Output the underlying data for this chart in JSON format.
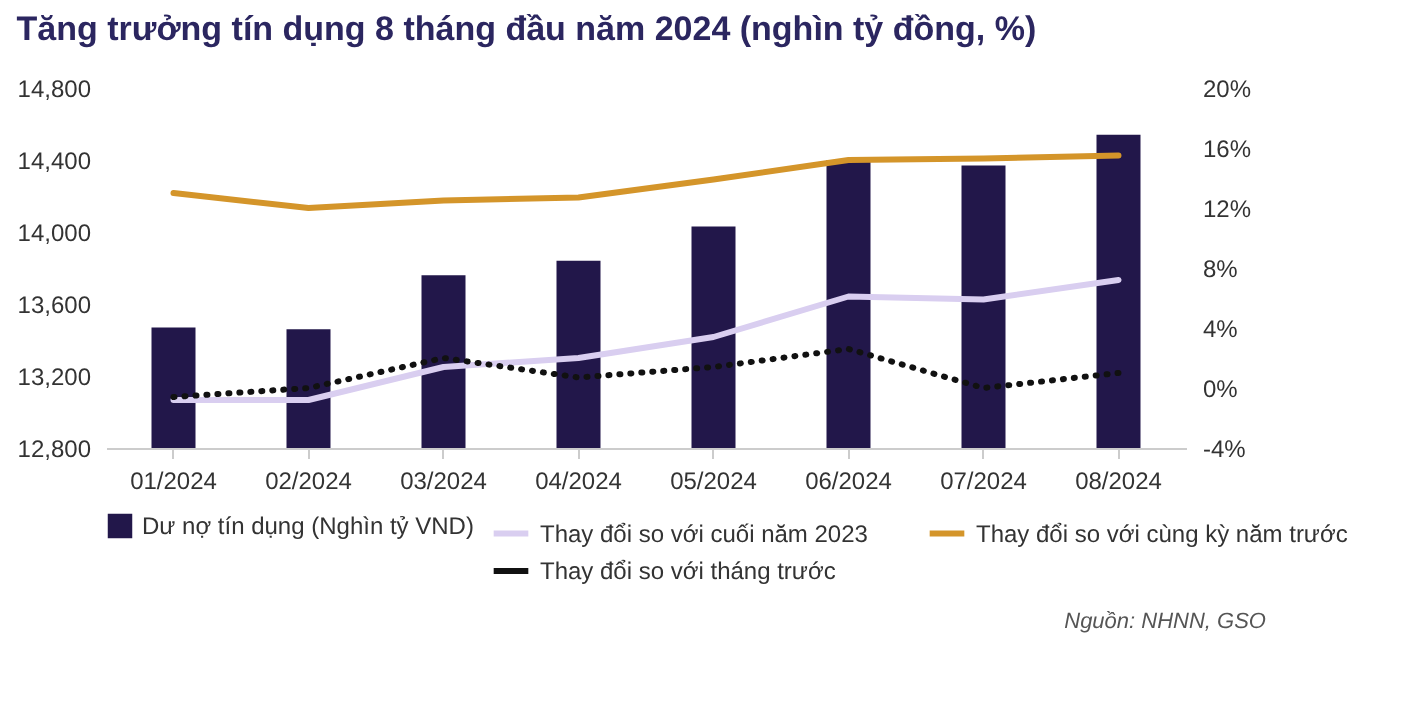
{
  "chart_data": {
    "type": "bar",
    "title": "Tăng trưởng tín dụng 8 tháng đầu năm 2024 (nghìn tỷ đồng, %)",
    "categories": [
      "01/2024",
      "02/2024",
      "03/2024",
      "04/2024",
      "05/2024",
      "06/2024",
      "07/2024",
      "08/2024"
    ],
    "series": [
      {
        "name": "Dư nợ tín dụng (Nghìn tỷ VND)",
        "color": "#22174a",
        "values": [
          13470,
          13460,
          13760,
          13840,
          14030,
          14400,
          14370,
          14540
        ]
      },
      {
        "name": "Thay đổi so với cuối năm 2023",
        "type": "line",
        "axis": "y2",
        "color": "#d9cef0",
        "line_style": "solid",
        "values": [
          -0.8,
          -0.8,
          1.4,
          2.0,
          3.4,
          6.1,
          5.9,
          7.2
        ]
      },
      {
        "name": "Thay đổi so với cùng kỳ năm trước",
        "type": "line",
        "axis": "y2",
        "color": "#d4952a",
        "line_style": "solid",
        "values": [
          13.0,
          12.0,
          12.5,
          12.7,
          13.9,
          15.2,
          15.3,
          15.5
        ]
      },
      {
        "name": "Thay đổi so với tháng trước",
        "type": "line",
        "axis": "y2",
        "color": "#111111",
        "line_style": "dotted",
        "values": [
          -0.6,
          0.0,
          2.0,
          0.7,
          1.4,
          2.6,
          0.0,
          1.0
        ]
      }
    ],
    "ylim": [
      12800,
      14800
    ],
    "yticks": [
      {
        "value": 12800,
        "label": "12,800"
      },
      {
        "value": 13200,
        "label": "13,200"
      },
      {
        "value": 13600,
        "label": "13,600"
      },
      {
        "value": 14000,
        "label": "14,000"
      },
      {
        "value": 14400,
        "label": "14,400"
      },
      {
        "value": 14800,
        "label": "14,800"
      }
    ],
    "y2lim": [
      -4,
      20
    ],
    "y2ticks": [
      {
        "value": -4,
        "label": "-4%"
      },
      {
        "value": 0,
        "label": "0%"
      },
      {
        "value": 4,
        "label": "4%"
      },
      {
        "value": 8,
        "label": "8%"
      },
      {
        "value": 12,
        "label": "12%"
      },
      {
        "value": 16,
        "label": "16%"
      },
      {
        "value": 20,
        "label": "20%"
      }
    ],
    "grid": false,
    "legend": "bottom",
    "marker": "none",
    "annotations": [
      "Nguồn: NHNN, GSO"
    ]
  }
}
